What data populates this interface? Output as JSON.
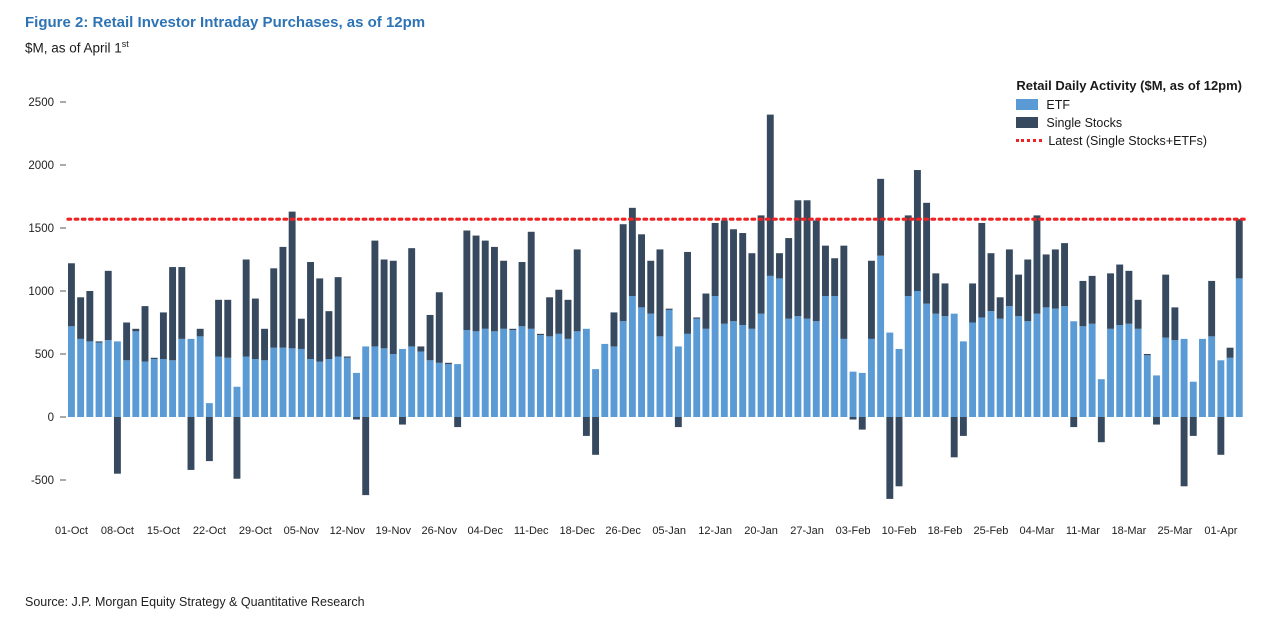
{
  "header": {
    "title": "Figure 2: Retail Investor Intraday Purchases, as of 12pm",
    "subtitle_prefix": "$M, as of April 1",
    "subtitle_sup": "st"
  },
  "legend": {
    "title": "Retail Daily Activity ($M, as of 12pm)",
    "etf_label": "ETF",
    "stocks_label": "Single Stocks",
    "latest_label": "Latest (Single Stocks+ETFs)"
  },
  "source": "Source: J.P. Morgan Equity Strategy & Quantitative Research",
  "colors": {
    "etf": "#5B9BD5",
    "stocks": "#36495E",
    "latest_line": "#EE2222",
    "title_blue": "#2E74B5"
  },
  "chart_data": {
    "type": "bar",
    "stacked": true,
    "title": "Figure 2: Retail Investor Intraday Purchases, as of 12pm",
    "subtitle": "$M, as of April 1st",
    "ylabel": "$M",
    "ylim": [
      -700,
      2600
    ],
    "yticks": [
      -500,
      0,
      500,
      1000,
      1500,
      2000,
      2500
    ],
    "grid": false,
    "legend_position": "top-right",
    "x_tick_every": 5,
    "x_tick_labels": [
      "01-Oct",
      "08-Oct",
      "15-Oct",
      "22-Oct",
      "29-Oct",
      "05-Nov",
      "12-Nov",
      "19-Nov",
      "26-Nov",
      "04-Dec",
      "11-Dec",
      "18-Dec",
      "26-Dec",
      "05-Jan",
      "12-Jan",
      "20-Jan",
      "27-Jan",
      "03-Feb",
      "10-Feb",
      "18-Feb",
      "25-Feb",
      "04-Mar",
      "11-Mar",
      "18-Mar",
      "25-Mar",
      "01-Apr"
    ],
    "latest_line": {
      "label": "Latest (Single Stocks+ETFs)",
      "value": 1570
    },
    "series": [
      {
        "name": "ETF",
        "values": [
          720,
          620,
          600,
          590,
          610,
          600,
          450,
          680,
          440,
          460,
          460,
          450,
          620,
          620,
          640,
          110,
          480,
          470,
          240,
          480,
          460,
          450,
          550,
          550,
          545,
          540,
          460,
          440,
          460,
          480,
          470,
          350,
          560,
          560,
          545,
          500,
          540,
          560,
          520,
          450,
          430,
          420,
          420,
          690,
          680,
          700,
          680,
          700,
          690,
          720,
          700,
          650,
          640,
          660,
          620,
          680,
          700,
          380,
          580,
          560,
          760,
          960,
          870,
          820,
          640,
          850,
          560,
          660,
          780,
          700,
          960,
          740,
          760,
          730,
          700,
          820,
          1120,
          1100,
          780,
          800,
          780,
          760,
          960,
          960,
          620,
          360,
          350,
          620,
          1280,
          670,
          540,
          960,
          1000,
          900,
          820,
          800,
          820,
          600,
          750,
          790,
          840,
          780,
          880,
          800,
          760,
          820,
          870,
          860,
          880,
          760,
          720,
          740,
          300,
          700,
          730,
          740,
          700,
          490,
          330,
          630,
          610,
          620,
          280,
          620,
          640,
          450,
          470,
          1100
        ]
      },
      {
        "name": "Single Stocks",
        "values": [
          500,
          330,
          400,
          10,
          550,
          -450,
          300,
          20,
          440,
          10,
          370,
          740,
          570,
          -420,
          60,
          -350,
          450,
          460,
          -490,
          770,
          480,
          250,
          630,
          800,
          1085,
          240,
          770,
          660,
          380,
          630,
          10,
          -20,
          -620,
          840,
          705,
          740,
          -60,
          780,
          40,
          360,
          560,
          10,
          -80,
          790,
          760,
          700,
          670,
          540,
          10,
          510,
          770,
          10,
          310,
          350,
          310,
          650,
          -150,
          -300,
          0,
          270,
          770,
          700,
          580,
          420,
          690,
          10,
          -80,
          650,
          10,
          280,
          580,
          820,
          730,
          730,
          600,
          780,
          1280,
          200,
          640,
          920,
          940,
          800,
          400,
          300,
          740,
          -20,
          -100,
          620,
          610,
          -650,
          -550,
          640,
          960,
          800,
          320,
          260,
          -320,
          -150,
          310,
          750,
          460,
          170,
          450,
          330,
          490,
          780,
          420,
          470,
          500,
          -80,
          360,
          380,
          -200,
          440,
          480,
          420,
          230,
          10,
          -60,
          500,
          260,
          -550,
          -150,
          0,
          440,
          -300,
          80,
          470
        ]
      }
    ]
  }
}
